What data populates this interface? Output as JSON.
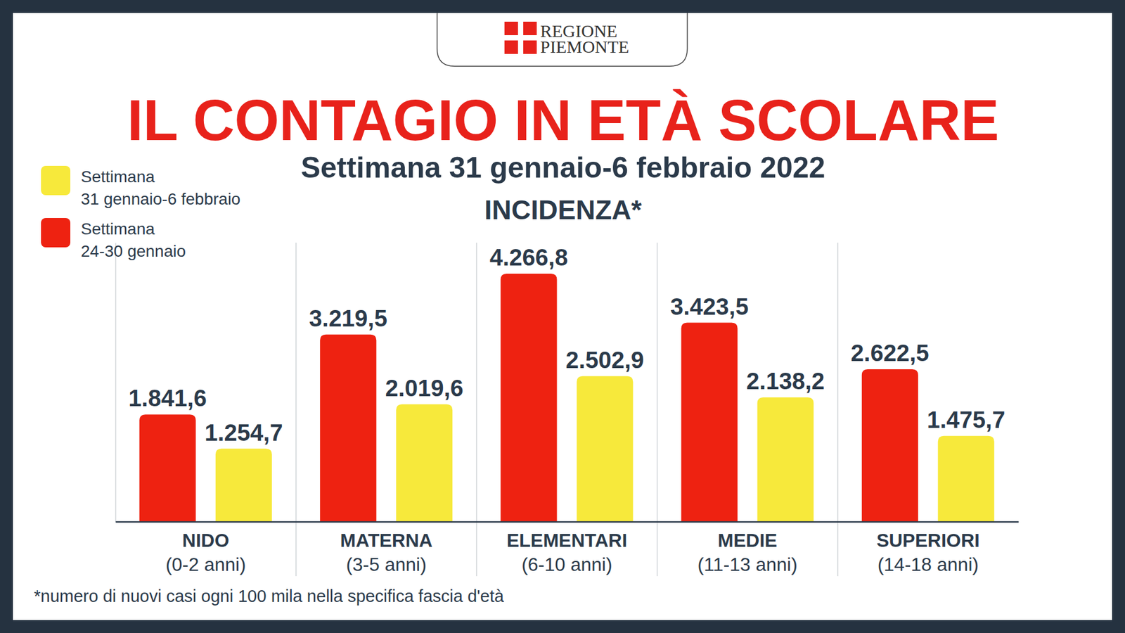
{
  "header": {
    "logo": [
      "REGIONE",
      "PIEMONTE"
    ]
  },
  "chart_data": {
    "type": "bar",
    "title": "IL CONTAGIO IN ETÀ SCOLARE",
    "subtitle": "Settimana 31 gennaio-6 febbraio 2022",
    "y_label": "INCIDENZA*",
    "footnote": "*numero di nuovi casi ogni 100 mila nella specifica fascia d'età",
    "categories": [
      "NIDO",
      "MATERNA",
      "ELEMENTARI",
      "MEDIE",
      "SUPERIORI"
    ],
    "category_subtitles": [
      "(0-2 anni)",
      "(3-5 anni)",
      "(6-10 anni)",
      "(11-13 anni)",
      "(14-18 anni)"
    ],
    "series": [
      {
        "name": "Settimana 24-30 gennaio",
        "color": "#ee2211",
        "values": [
          1841.6,
          3219.5,
          4266.8,
          3423.5,
          2622.5
        ],
        "value_labels": [
          "1.841,6",
          "3.219,5",
          "4.266,8",
          "3.423,5",
          "2.622,5"
        ]
      },
      {
        "name": "Settimana 31 gennaio-6 febbraio",
        "color": "#f7e93b",
        "values": [
          1254.7,
          2019.6,
          2502.9,
          2138.2,
          1475.7
        ],
        "value_labels": [
          "1.254,7",
          "2.019,6",
          "2.502,9",
          "2.138,2",
          "1.475,7"
        ]
      }
    ],
    "ylim": [
      0,
      4800
    ],
    "data_labels": true,
    "tick_labels": false,
    "legend": "top-left"
  }
}
